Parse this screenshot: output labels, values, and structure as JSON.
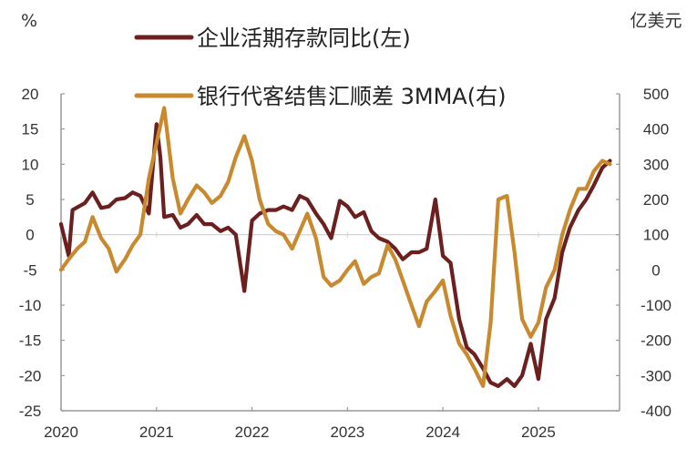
{
  "chart_data": {
    "type": "line",
    "title": "",
    "left_axis": {
      "unit_label": "%",
      "ylim": [
        -25,
        20
      ],
      "ticks": [
        20,
        15,
        10,
        5,
        0,
        -5,
        -10,
        -15,
        -20,
        -25
      ]
    },
    "right_axis": {
      "unit_label": "亿美元",
      "ylim": [
        -400,
        500
      ],
      "ticks": [
        500,
        400,
        300,
        200,
        100,
        0,
        -100,
        -200,
        -300,
        -400
      ]
    },
    "x_axis": {
      "xlim": [
        2020.0,
        2025.85
      ],
      "ticks": [
        "2020",
        "2021",
        "2022",
        "2023",
        "2024",
        "2025"
      ]
    },
    "grid": false,
    "legend_position": "top-center",
    "series": [
      {
        "name": "企业活期存款同比(左)",
        "axis": "left",
        "color": "#6b1f1f",
        "points": [
          [
            2020.0,
            1.5
          ],
          [
            2020.08,
            -3.0
          ],
          [
            2020.12,
            3.5
          ],
          [
            2020.25,
            4.5
          ],
          [
            2020.33,
            6.0
          ],
          [
            2020.42,
            3.8
          ],
          [
            2020.5,
            4.0
          ],
          [
            2020.58,
            5.0
          ],
          [
            2020.67,
            5.2
          ],
          [
            2020.75,
            6.0
          ],
          [
            2020.83,
            5.5
          ],
          [
            2020.92,
            3.0
          ],
          [
            2021.0,
            15.7
          ],
          [
            2021.04,
            11.0
          ],
          [
            2021.08,
            2.5
          ],
          [
            2021.17,
            2.8
          ],
          [
            2021.25,
            1.0
          ],
          [
            2021.33,
            1.5
          ],
          [
            2021.42,
            2.8
          ],
          [
            2021.5,
            1.5
          ],
          [
            2021.58,
            1.5
          ],
          [
            2021.67,
            0.5
          ],
          [
            2021.75,
            1.0
          ],
          [
            2021.83,
            0.0
          ],
          [
            2021.92,
            -8.0
          ],
          [
            2022.0,
            2.0
          ],
          [
            2022.08,
            3.0
          ],
          [
            2022.17,
            3.5
          ],
          [
            2022.25,
            3.5
          ],
          [
            2022.33,
            4.0
          ],
          [
            2022.42,
            3.5
          ],
          [
            2022.5,
            5.5
          ],
          [
            2022.58,
            5.0
          ],
          [
            2022.67,
            3.0
          ],
          [
            2022.75,
            1.5
          ],
          [
            2022.83,
            -0.5
          ],
          [
            2022.92,
            4.8
          ],
          [
            2023.0,
            4.0
          ],
          [
            2023.08,
            2.5
          ],
          [
            2023.17,
            3.2
          ],
          [
            2023.25,
            0.5
          ],
          [
            2023.33,
            -0.5
          ],
          [
            2023.42,
            -1.0
          ],
          [
            2023.5,
            -2.0
          ],
          [
            2023.58,
            -3.5
          ],
          [
            2023.67,
            -2.5
          ],
          [
            2023.75,
            -2.5
          ],
          [
            2023.83,
            -2.0
          ],
          [
            2023.92,
            5.0
          ],
          [
            2024.0,
            -3.0
          ],
          [
            2024.08,
            -4.0
          ],
          [
            2024.17,
            -12.0
          ],
          [
            2024.25,
            -16.0
          ],
          [
            2024.33,
            -17.0
          ],
          [
            2024.42,
            -19.0
          ],
          [
            2024.5,
            -21.0
          ],
          [
            2024.58,
            -21.5
          ],
          [
            2024.67,
            -20.5
          ],
          [
            2024.75,
            -21.5
          ],
          [
            2024.83,
            -20.0
          ],
          [
            2024.92,
            -15.5
          ],
          [
            2025.0,
            -20.5
          ],
          [
            2025.08,
            -12.0
          ],
          [
            2025.17,
            -9.0
          ],
          [
            2025.25,
            -2.5
          ],
          [
            2025.33,
            1.0
          ],
          [
            2025.42,
            3.5
          ],
          [
            2025.5,
            5.0
          ],
          [
            2025.58,
            7.0
          ],
          [
            2025.67,
            9.5
          ],
          [
            2025.75,
            10.5
          ]
        ]
      },
      {
        "name": "银行代客结售汇顺差 3MMA(右)",
        "axis": "right",
        "color": "#c8892f",
        "points": [
          [
            2020.0,
            0
          ],
          [
            2020.08,
            30
          ],
          [
            2020.17,
            60
          ],
          [
            2020.25,
            80
          ],
          [
            2020.33,
            150
          ],
          [
            2020.42,
            90
          ],
          [
            2020.5,
            60
          ],
          [
            2020.58,
            -5
          ],
          [
            2020.67,
            30
          ],
          [
            2020.75,
            70
          ],
          [
            2020.83,
            100
          ],
          [
            2020.92,
            260
          ],
          [
            2021.0,
            360
          ],
          [
            2021.08,
            460
          ],
          [
            2021.17,
            260
          ],
          [
            2021.25,
            160
          ],
          [
            2021.33,
            200
          ],
          [
            2021.42,
            240
          ],
          [
            2021.5,
            220
          ],
          [
            2021.58,
            190
          ],
          [
            2021.67,
            210
          ],
          [
            2021.75,
            250
          ],
          [
            2021.83,
            320
          ],
          [
            2021.92,
            380
          ],
          [
            2022.0,
            310
          ],
          [
            2022.08,
            200
          ],
          [
            2022.17,
            130
          ],
          [
            2022.25,
            110
          ],
          [
            2022.33,
            100
          ],
          [
            2022.42,
            60
          ],
          [
            2022.5,
            110
          ],
          [
            2022.58,
            160
          ],
          [
            2022.67,
            90
          ],
          [
            2022.75,
            -20
          ],
          [
            2022.83,
            -45
          ],
          [
            2022.92,
            -30
          ],
          [
            2023.0,
            0
          ],
          [
            2023.08,
            25
          ],
          [
            2023.17,
            -40
          ],
          [
            2023.25,
            -20
          ],
          [
            2023.33,
            -10
          ],
          [
            2023.42,
            70
          ],
          [
            2023.5,
            30
          ],
          [
            2023.58,
            -30
          ],
          [
            2023.67,
            -100
          ],
          [
            2023.75,
            -160
          ],
          [
            2023.83,
            -90
          ],
          [
            2023.92,
            -60
          ],
          [
            2024.0,
            -30
          ],
          [
            2024.08,
            -130
          ],
          [
            2024.17,
            -210
          ],
          [
            2024.25,
            -240
          ],
          [
            2024.33,
            -280
          ],
          [
            2024.42,
            -330
          ],
          [
            2024.5,
            -150
          ],
          [
            2024.58,
            200
          ],
          [
            2024.67,
            210
          ],
          [
            2024.75,
            50
          ],
          [
            2024.83,
            -140
          ],
          [
            2024.92,
            -190
          ],
          [
            2025.0,
            -150
          ],
          [
            2025.08,
            -50
          ],
          [
            2025.17,
            0
          ],
          [
            2025.25,
            100
          ],
          [
            2025.33,
            170
          ],
          [
            2025.42,
            230
          ],
          [
            2025.5,
            230
          ],
          [
            2025.58,
            280
          ],
          [
            2025.67,
            310
          ],
          [
            2025.75,
            300
          ]
        ]
      }
    ]
  }
}
